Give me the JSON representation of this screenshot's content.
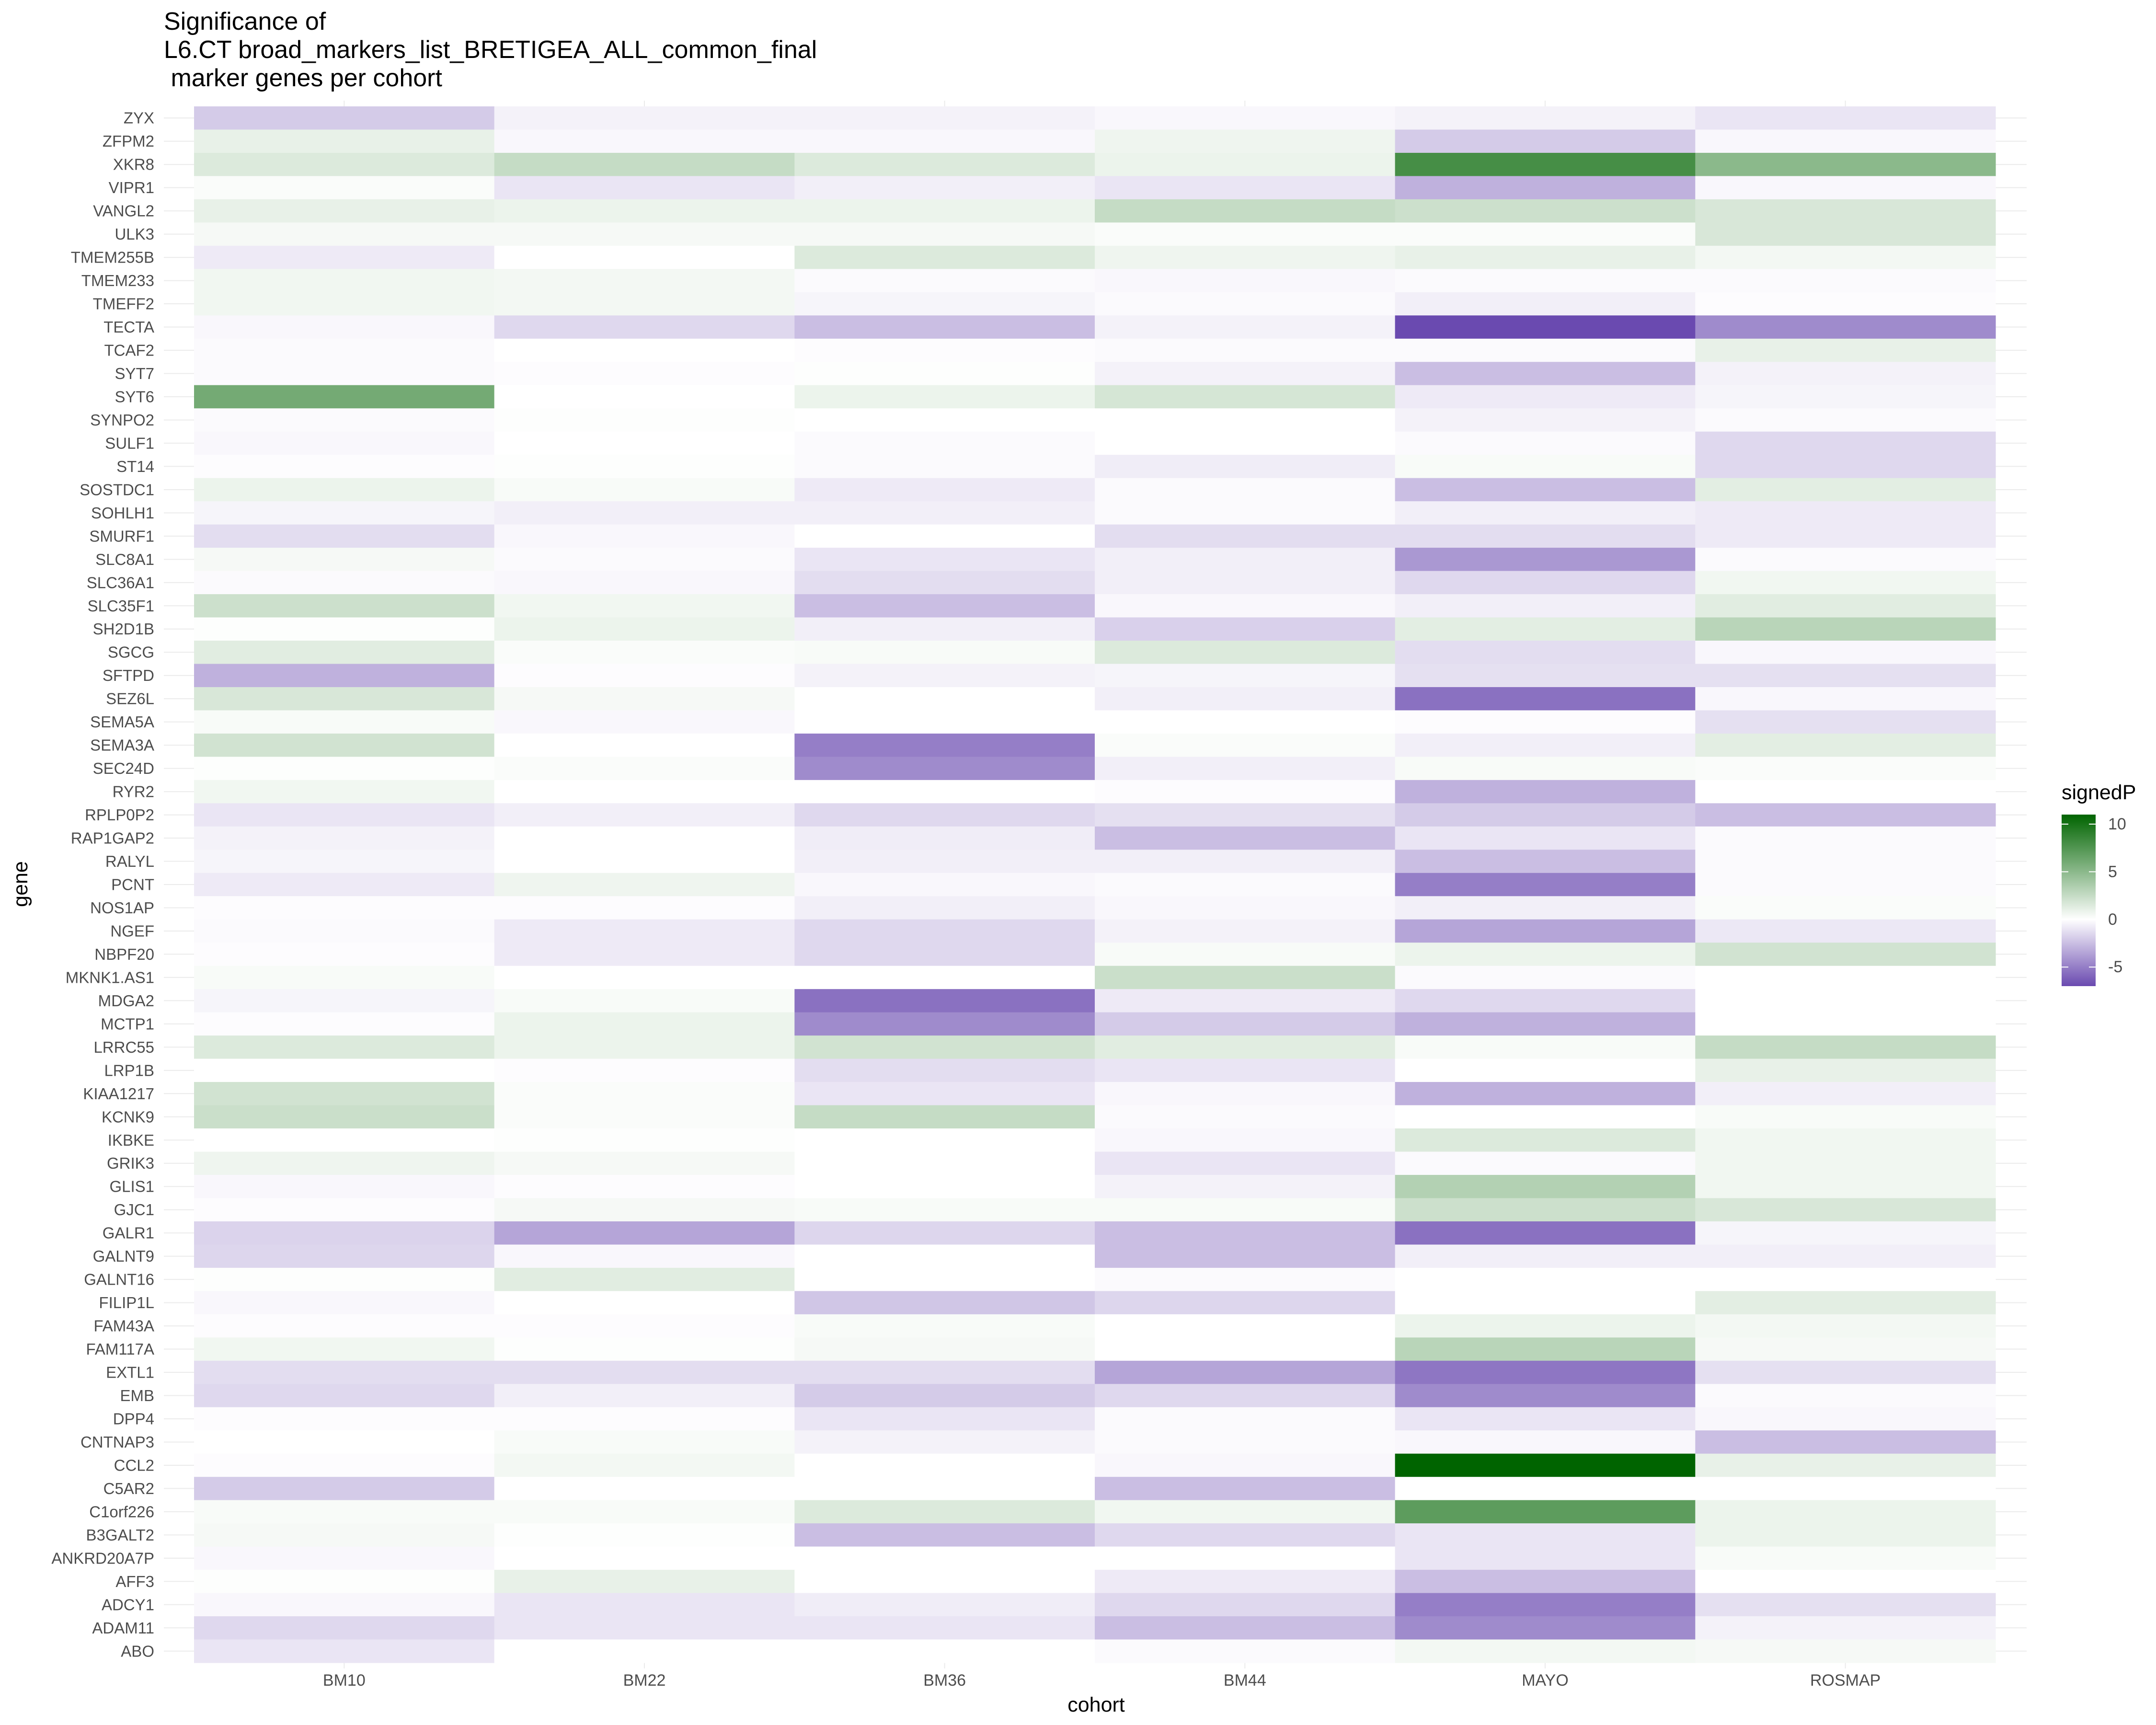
{
  "chart_data": {
    "type": "heatmap",
    "title": [
      "Significance of",
      "L6.CT broad_markers_list_BRETIGEA_ALL_common_final",
      " marker genes per cohort"
    ],
    "xlabel": "cohort",
    "ylabel": "gene",
    "legend_title": "signedP",
    "legend_ticks": [
      10,
      5,
      0,
      -5
    ],
    "color_range": [
      -7,
      11
    ],
    "colors": {
      "low": "#6a4ab0",
      "mid": "#ffffff",
      "high": "#006400"
    },
    "x": [
      "BM10",
      "BM22",
      "BM36",
      "BM44",
      "MAYO",
      "ROSMAP"
    ],
    "y": [
      "ZYX",
      "ZFPM2",
      "XKR8",
      "VIPR1",
      "VANGL2",
      "ULK3",
      "TMEM255B",
      "TMEM233",
      "TMEFF2",
      "TECTA",
      "TCAF2",
      "SYT7",
      "SYT6",
      "SYNPO2",
      "SULF1",
      "ST14",
      "SOSTDC1",
      "SOHLH1",
      "SMURF1",
      "SLC8A1",
      "SLC36A1",
      "SLC35F1",
      "SH2D1B",
      "SGCG",
      "SFTPD",
      "SEZ6L",
      "SEMA5A",
      "SEMA3A",
      "SEC24D",
      "RYR2",
      "RPLP0P2",
      "RAP1GAP2",
      "RALYL",
      "PCNT",
      "NOS1AP",
      "NGEF",
      "NBPF20",
      "MKNK1.AS1",
      "MDGA2",
      "MCTP1",
      "LRRC55",
      "LRP1B",
      "KIAA1217",
      "KCNK9",
      "IKBKE",
      "GRIK3",
      "GLIS1",
      "GJC1",
      "GALR1",
      "GALNT9",
      "GALNT16",
      "FILIP1L",
      "FAM43A",
      "FAM117A",
      "EXTL1",
      "EMB",
      "DPP4",
      "CNTNAP3",
      "CCL2",
      "C5AR2",
      "C1orf226",
      "B3GALT2",
      "ANKRD20A7P",
      "AFF3",
      "ADCY1",
      "ADAM11",
      "ABO"
    ],
    "values": [
      [
        -2,
        -0.5,
        -0.5,
        -0.3,
        -0.5,
        -1
      ],
      [
        1,
        -0.3,
        -0.3,
        0.7,
        -2,
        -0.3
      ],
      [
        1.5,
        2.5,
        1.5,
        0.8,
        8,
        5
      ],
      [
        0.2,
        -1,
        -0.6,
        -1,
        -3,
        -0.3
      ],
      [
        1,
        0.8,
        0.8,
        2.5,
        2.2,
        1.7
      ],
      [
        0.4,
        0.4,
        0.4,
        0.2,
        0.2,
        1.7
      ],
      [
        -0.8,
        0,
        1.5,
        0.7,
        1,
        0.5
      ],
      [
        0.6,
        0.5,
        -0.2,
        -0.3,
        -0.2,
        -0.2
      ],
      [
        0.6,
        0.5,
        -0.4,
        -0.2,
        -0.6,
        -0.1
      ],
      [
        -0.3,
        -1.5,
        -2.5,
        -0.5,
        -7,
        -4.5
      ],
      [
        -0.2,
        0,
        -0.1,
        -0.2,
        -0.2,
        1
      ],
      [
        -0.2,
        -0.1,
        0.1,
        -0.5,
        -2.5,
        -0.5
      ],
      [
        6,
        0,
        0.8,
        1.8,
        -0.8,
        -0.4
      ],
      [
        -0.2,
        0.1,
        0,
        0,
        -0.5,
        -0.2
      ],
      [
        -0.3,
        0,
        -0.2,
        0,
        -0.2,
        -1.5
      ],
      [
        -0.1,
        0.1,
        -0.2,
        -0.7,
        0.3,
        -1.5
      ],
      [
        0.8,
        0.3,
        -0.8,
        -0.2,
        -2.5,
        1.2
      ],
      [
        -0.4,
        -0.6,
        -0.6,
        -0.2,
        -0.6,
        -0.8
      ],
      [
        -1.3,
        -0.3,
        0,
        -1.3,
        -1.3,
        -0.8
      ],
      [
        0.4,
        -0.2,
        -1,
        -0.6,
        -4,
        -0.2
      ],
      [
        -0.2,
        -0.3,
        -1.3,
        -0.6,
        -1.5,
        0.6
      ],
      [
        2.2,
        0.6,
        -2.5,
        -0.3,
        -0.6,
        1.3
      ],
      [
        0.1,
        0.8,
        -0.6,
        -1.8,
        1.2,
        3
      ],
      [
        1.3,
        0.2,
        0.3,
        1.5,
        -1.3,
        -0.3
      ],
      [
        -3,
        -0.1,
        -0.5,
        -0.4,
        -1.2,
        -1.2
      ],
      [
        1.7,
        0.4,
        0,
        -0.6,
        -5.5,
        -0.3
      ],
      [
        0.3,
        -0.3,
        0,
        0,
        -0.1,
        -1.2
      ],
      [
        2,
        0,
        -5,
        0.2,
        -0.6,
        1.2
      ],
      [
        0.1,
        0.2,
        -4.5,
        -0.6,
        0.3,
        0.2
      ],
      [
        0.6,
        0,
        0,
        -0.1,
        -3,
        0
      ],
      [
        -1,
        -0.6,
        -1.5,
        -1.2,
        -2,
        -2.5
      ],
      [
        -0.5,
        0,
        -0.7,
        -2.5,
        -1,
        -0.2
      ],
      [
        -0.4,
        0,
        -0.6,
        -0.6,
        -2.5,
        -0.2
      ],
      [
        -0.8,
        0.7,
        -0.3,
        -0.2,
        -5,
        -0.2
      ],
      [
        -0.1,
        -0.1,
        -0.6,
        -0.3,
        -0.6,
        0.2
      ],
      [
        -0.2,
        -0.8,
        -1.5,
        -0.5,
        -3.5,
        -0.9
      ],
      [
        -0.1,
        -0.8,
        -1.5,
        0.3,
        0.8,
        2
      ],
      [
        0.3,
        0,
        0,
        2.3,
        -0.2,
        0
      ],
      [
        -0.4,
        0.3,
        -5.5,
        -0.8,
        -1.5,
        0
      ],
      [
        -0.1,
        0.8,
        -4.5,
        -2,
        -3,
        0
      ],
      [
        1.5,
        0.8,
        2,
        1.3,
        0.3,
        2.5
      ],
      [
        0,
        -0.1,
        -1.3,
        -1,
        0,
        1
      ],
      [
        2,
        0.2,
        -1,
        -0.3,
        -3,
        -0.6
      ],
      [
        2.3,
        0.2,
        2.5,
        -0.2,
        0,
        0.3
      ],
      [
        0,
        0.1,
        0,
        -0.3,
        1.5,
        0.6
      ],
      [
        0.7,
        0.4,
        0,
        -1,
        -0.2,
        0.6
      ],
      [
        -0.3,
        -0.1,
        0,
        -0.5,
        3.3,
        0.6
      ],
      [
        -0.1,
        0.4,
        0.3,
        0.3,
        2.2,
        1.7
      ],
      [
        -1.7,
        -3.5,
        -1.6,
        -2.5,
        -5.5,
        -0.4
      ],
      [
        -1.6,
        -0.3,
        0,
        -2.5,
        -0.6,
        -0.6
      ],
      [
        0.1,
        1.3,
        0,
        -0.2,
        0,
        0
      ],
      [
        -0.3,
        0,
        -2.2,
        -1.6,
        0,
        1.2
      ],
      [
        -0.1,
        -0.1,
        0.3,
        0,
        0.8,
        0.5
      ],
      [
        0.6,
        0.1,
        0.4,
        0,
        3,
        0.4
      ],
      [
        -1.3,
        -1.3,
        -1.3,
        -3.5,
        -5.3,
        -1.2
      ],
      [
        -1.5,
        -0.6,
        -2,
        -1.5,
        -4.5,
        -0.2
      ],
      [
        -0.1,
        -0.1,
        -1,
        -0.2,
        -1,
        -0.3
      ],
      [
        0,
        0.3,
        -0.5,
        -0.2,
        -0.3,
        -2.5
      ],
      [
        -0.1,
        0.5,
        0,
        -0.3,
        11,
        1
      ],
      [
        -2,
        0,
        0,
        -2.5,
        0,
        0
      ],
      [
        0.3,
        0.3,
        1.5,
        0.6,
        7,
        0.8
      ],
      [
        0.4,
        0.1,
        -2.5,
        -1.5,
        -1,
        0.8
      ],
      [
        -0.3,
        0,
        0,
        0,
        -1,
        0.3
      ],
      [
        0.1,
        1,
        0,
        -0.8,
        -2.5,
        0
      ],
      [
        -0.3,
        -1,
        -0.7,
        -1.5,
        -5,
        -1.2
      ],
      [
        -1.5,
        -1,
        -1,
        -2.5,
        -4.5,
        -0.5
      ],
      [
        -1,
        0,
        0,
        -0.2,
        0.5,
        0.4
      ]
    ]
  }
}
